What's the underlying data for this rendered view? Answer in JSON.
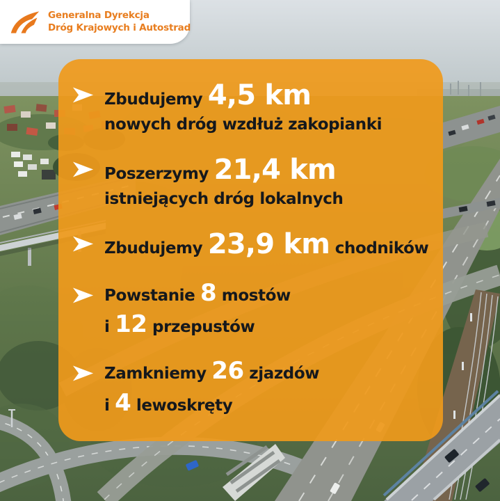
{
  "header": {
    "line1": "Generalna Dyrekcja",
    "line2": "Dróg Krajowych i Autostrad"
  },
  "card": {
    "bullets": [
      {
        "lines": [
          [
            {
              "t": "Zbudujemy ",
              "s": "dark"
            },
            {
              "t": "4,5 km",
              "s": "big"
            }
          ],
          [
            {
              "t": "nowych dróg wzdłuż zakopianki",
              "s": "dark"
            }
          ]
        ]
      },
      {
        "lines": [
          [
            {
              "t": "Poszerzymy ",
              "s": "dark"
            },
            {
              "t": "21,4 km",
              "s": "big"
            }
          ],
          [
            {
              "t": "istniejących dróg lokalnych",
              "s": "dark"
            }
          ]
        ]
      },
      {
        "lines": [
          [
            {
              "t": "Zbudujemy ",
              "s": "dark"
            },
            {
              "t": "23,9 km",
              "s": "big"
            },
            {
              "t": " chodników",
              "s": "dark"
            }
          ]
        ]
      },
      {
        "lines": [
          [
            {
              "t": "Powstanie ",
              "s": "dark"
            },
            {
              "t": "8",
              "s": "num"
            },
            {
              "t": " mostów",
              "s": "dark"
            }
          ],
          [
            {
              "t": "i ",
              "s": "dark"
            },
            {
              "t": "12",
              "s": "num"
            },
            {
              "t": " przepustów",
              "s": "dark"
            }
          ]
        ]
      },
      {
        "lines": [
          [
            {
              "t": "Zamkniemy ",
              "s": "dark"
            },
            {
              "t": "26",
              "s": "num"
            },
            {
              "t": " zjazdów",
              "s": "dark"
            }
          ],
          [
            {
              "t": "i ",
              "s": "dark"
            },
            {
              "t": "4",
              "s": "num"
            },
            {
              "t": " lewoskręty",
              "s": "dark"
            }
          ]
        ]
      }
    ]
  },
  "colors": {
    "card_orange": "#F09A1B",
    "brand_orange": "#E87D1E",
    "dark_text": "#15181C",
    "white_text": "#FFFFFF"
  },
  "icons": {
    "bullet": "arrow-right-icon",
    "logo": "gddkia-road-logo"
  },
  "background_scene": "aerial photo of highway interchange with suburb, green fields, footbridge, railway tracks and road overpass"
}
